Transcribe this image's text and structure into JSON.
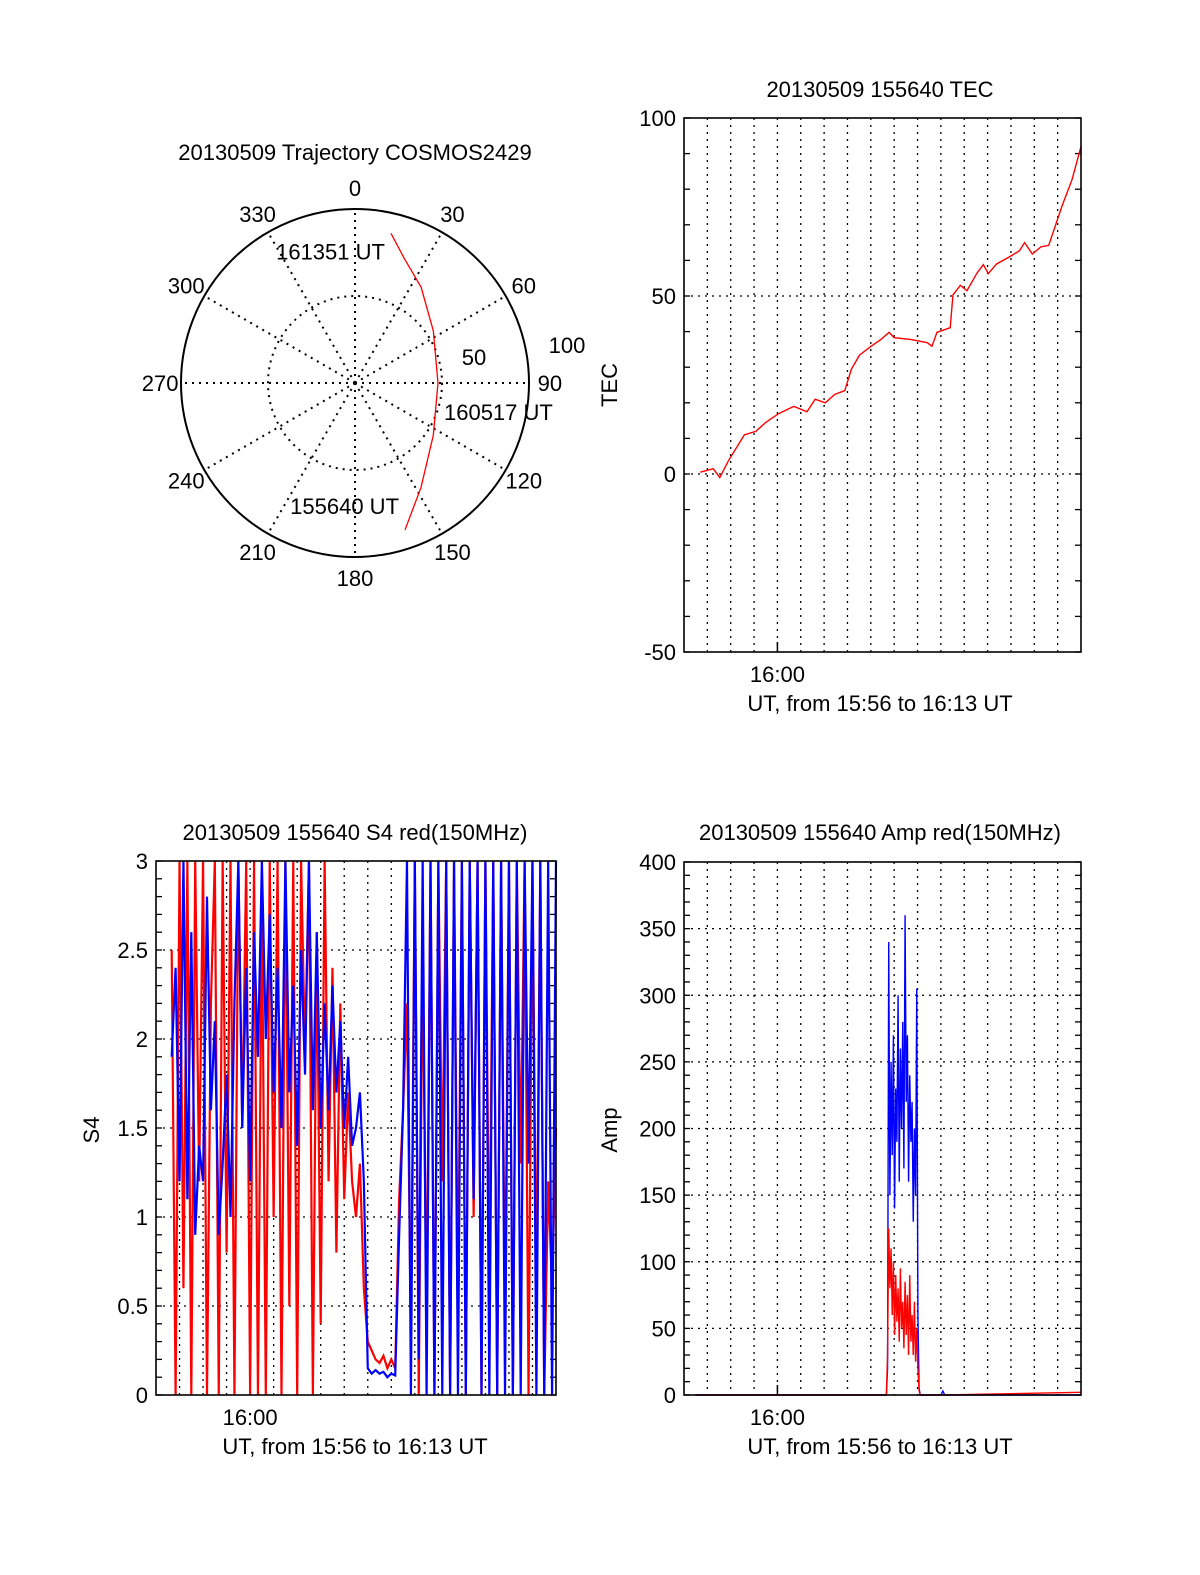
{
  "chart_data": [
    {
      "type": "polar",
      "title": "20130509 Trajectory COSMOS2429",
      "azimuth_labels": [
        "0",
        "30",
        "60",
        "90",
        "120",
        "150",
        "180",
        "210",
        "240",
        "270",
        "300",
        "330"
      ],
      "azimuth_values": [
        0,
        30,
        60,
        90,
        120,
        150,
        180,
        210,
        240,
        270,
        300,
        330
      ],
      "radial_labels": [
        "50",
        "100"
      ],
      "radial_values": [
        50,
        100
      ],
      "rlim": [
        0,
        100
      ],
      "grid": true,
      "trajectory": {
        "color": "#ff0000",
        "az": [
          161.2,
          147.7,
          123.7,
          90,
          56.3,
          34.6,
          21.3,
          13.5
        ],
        "r": [
          89.2,
          71,
          54.1,
          47.7,
          54.1,
          66.9,
          77.3,
          88.5
        ]
      },
      "annotations": [
        {
          "text": "155640 UT",
          "az": 161.2,
          "r": 89.2
        },
        {
          "text": "160517 UT",
          "az": 90,
          "r": 47.7
        },
        {
          "text": "161351 UT",
          "az": 13.5,
          "r": 88.5
        }
      ]
    },
    {
      "type": "line",
      "title": "20130509 155640 TEC",
      "xlabel": "UT, from 15:56 to 16:13 UT",
      "ylabel": "TEC",
      "x_units": "seconds after 15:56:00 UT",
      "xlim": [
        0,
        1020
      ],
      "ylim": [
        -50,
        100
      ],
      "yticks": [
        -50,
        0,
        50,
        100
      ],
      "ytick_labels": [
        "-50",
        "0",
        "50",
        "100"
      ],
      "xticks": [
        240
      ],
      "xtick_labels": [
        "16:00"
      ],
      "grid": true,
      "series": [
        {
          "name": "TEC",
          "color": "#ff0000",
          "x": [
            42,
            75,
            92,
            113,
            155,
            185,
            210,
            244,
            282,
            316,
            337,
            363,
            388,
            413,
            430,
            451,
            481,
            506,
            527,
            540,
            582,
            625,
            637,
            650,
            684,
            691,
            710,
            727,
            752,
            769,
            782,
            803,
            836,
            862,
            875,
            895,
            917,
            937,
            954,
            971,
            997,
            1020
          ],
          "y": [
            0.5,
            1.5,
            -1,
            3.5,
            11,
            12,
            14.5,
            17,
            19,
            17.5,
            21,
            20,
            22.4,
            23.4,
            29.4,
            33.4,
            35.9,
            37.8,
            39.8,
            38.3,
            37.8,
            36.9,
            35.9,
            39.8,
            41.1,
            50.3,
            53,
            51.5,
            56.3,
            58.8,
            56.3,
            59,
            61,
            62.7,
            65,
            61.8,
            63.8,
            64.2,
            69.7,
            75.2,
            82.7,
            92
          ]
        }
      ]
    },
    {
      "type": "line",
      "title": "20130509 155640 S4 red(150MHz)",
      "xlabel": "UT, from 15:56 to 16:13 UT",
      "ylabel": "S4",
      "x_units": "seconds after 15:56:00 UT",
      "xlim": [
        0,
        1020
      ],
      "ylim": [
        0,
        3
      ],
      "yticks": [
        0,
        0.5,
        1,
        1.5,
        2,
        2.5,
        3
      ],
      "ytick_labels": [
        "0",
        "0.5",
        "1",
        "1.5",
        "2",
        "2.5",
        "3"
      ],
      "xticks": [
        240
      ],
      "xtick_labels": [
        "16:00"
      ],
      "grid": true,
      "x_start": 40,
      "x_step": 10,
      "series": [
        {
          "name": "red",
          "color": "#ff0000",
          "values": [
            2.5,
            0,
            3,
            0.6,
            3,
            0,
            3,
            1.2,
            3,
            0,
            2.2,
            3,
            0,
            3,
            0.8,
            3,
            0,
            3,
            1.5,
            3,
            0,
            3,
            0,
            2.8,
            0,
            3,
            1.0,
            3,
            0,
            3,
            0.5,
            3,
            0,
            3,
            1.9,
            3,
            0,
            2.6,
            0.4,
            3,
            1.2,
            2.4,
            0.8,
            2.2,
            1.1,
            1.7,
            1.2,
            1.0,
            1.3,
            0.6,
            0.3,
            0.25,
            0.2,
            0.18,
            0.22,
            0.15,
            0.2,
            0.15,
            1.1,
            1.6,
            2.2,
            0.3,
            3,
            0,
            2.5,
            0.4,
            3,
            0,
            3,
            1.2,
            3,
            0,
            3,
            0.5,
            3,
            0,
            3,
            1.0,
            3,
            0,
            3,
            0.6,
            3,
            0,
            3,
            0.4,
            3,
            0,
            3,
            1.3,
            3,
            0,
            3,
            0.5,
            3,
            0,
            1.2,
            0.6,
            1.5
          ]
        },
        {
          "name": "blue",
          "color": "#0000ff",
          "values": [
            1.9,
            2.4,
            1.2,
            3,
            1.1,
            2.6,
            0.9,
            1.4,
            1.2,
            2.8,
            1.6,
            2.1,
            0.9,
            1.3,
            1.8,
            1.0,
            2.2,
            3,
            1.5,
            2.4,
            1.2,
            2.6,
            1.9,
            3,
            2.0,
            2.7,
            1.7,
            2.4,
            1.5,
            3,
            1.7,
            2.3,
            1.4,
            2.5,
            1.8,
            3,
            1.6,
            2.6,
            1.5,
            2.2,
            1.6,
            2.3,
            1.7,
            2.1,
            1.5,
            1.9,
            1.4,
            1.5,
            1.7,
            1.2,
            0.15,
            0.12,
            0.14,
            0.12,
            0.13,
            0.1,
            0.12,
            0.11,
            0.9,
            1.6,
            3,
            0,
            3,
            0.2,
            3,
            0,
            3,
            0,
            3,
            0,
            3,
            0,
            3,
            0,
            3,
            0,
            3,
            1.1,
            3,
            0,
            3,
            0,
            3,
            0,
            3,
            0,
            3,
            0,
            3,
            0,
            3,
            1.3,
            3,
            0,
            3,
            0,
            3,
            0,
            3
          ]
        }
      ]
    },
    {
      "type": "line",
      "title": "20130509 155640 Amp red(150MHz)",
      "xlabel": "UT, from 15:56 to 16:13 UT",
      "ylabel": "Amp",
      "x_units": "seconds after 15:56:00 UT",
      "xlim": [
        0,
        1020
      ],
      "ylim": [
        0,
        400
      ],
      "yticks": [
        0,
        50,
        100,
        150,
        200,
        250,
        300,
        350,
        400
      ],
      "ytick_labels": [
        "0",
        "50",
        "100",
        "150",
        "200",
        "250",
        "300",
        "350",
        "400"
      ],
      "xticks": [
        240
      ],
      "xtick_labels": [
        "16:00"
      ],
      "grid": true,
      "x": [
        30,
        515,
        520,
        523,
        526,
        529,
        532,
        535,
        538,
        541,
        544,
        547,
        550,
        553,
        556,
        559,
        562,
        565,
        568,
        571,
        574,
        577,
        580,
        583,
        586,
        589,
        592,
        595,
        598,
        601,
        604,
        607,
        620,
        660,
        665,
        670,
        1020
      ],
      "series": [
        {
          "name": "blue",
          "color": "#0000ff",
          "values": [
            0,
            0,
            0,
            20,
            340,
            150,
            250,
            180,
            270,
            140,
            230,
            190,
            300,
            160,
            260,
            200,
            280,
            170,
            360,
            220,
            270,
            160,
            240,
            190,
            220,
            130,
            200,
            150,
            305,
            60,
            5,
            0,
            0,
            0,
            3,
            0,
            0
          ]
        },
        {
          "name": "red",
          "color": "#ff0000",
          "values": [
            0,
            0,
            0,
            30,
            125,
            80,
            110,
            60,
            100,
            45,
            90,
            55,
            80,
            40,
            95,
            50,
            70,
            35,
            85,
            45,
            75,
            30,
            90,
            40,
            60,
            30,
            70,
            25,
            50,
            20,
            3,
            0,
            0,
            0,
            0,
            0,
            2
          ]
        }
      ]
    }
  ]
}
